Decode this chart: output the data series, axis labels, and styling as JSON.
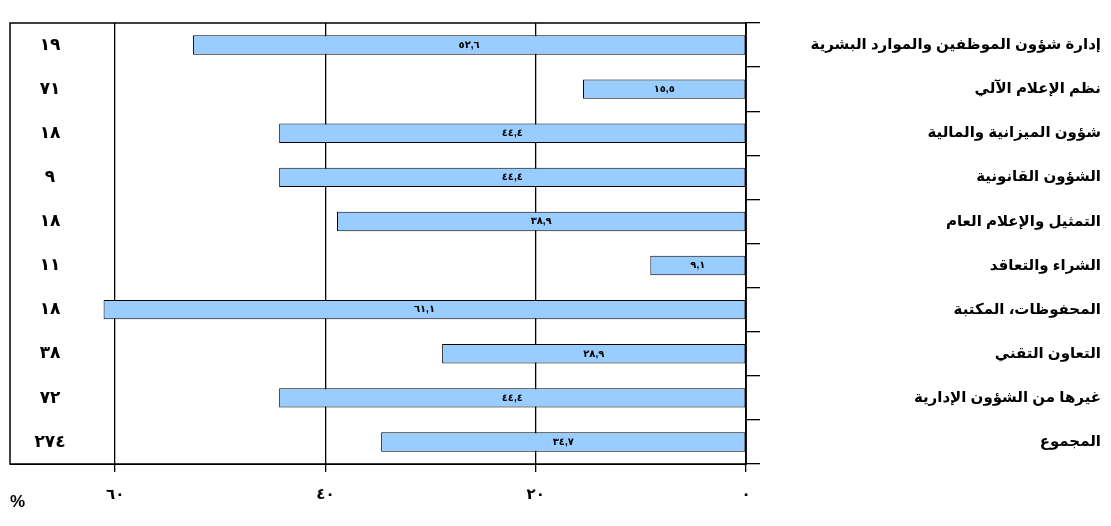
{
  "chart_data": {
    "type": "bar",
    "orientation": "horizontal",
    "xlabel": "%",
    "categories": [
      "إدارة شؤون الموظفين والموارد البشرية",
      "نظم الإعلام الآلي",
      "شؤون الميزانية والمالية",
      "الشؤون القانونية",
      "التمثيل والإعلام العام",
      "الشراء والتعاقد",
      "المحفوظات، المكتبة",
      "التعاون التقني",
      "غيرها من الشؤون الإدارية",
      "المجموع"
    ],
    "values": [
      52.6,
      15.5,
      44.4,
      44.4,
      38.9,
      9.1,
      61.1,
      28.9,
      44.4,
      34.7
    ],
    "value_labels": [
      "٥٢,٦",
      "١٥,٥",
      "٤٤,٤",
      "٤٤,٤",
      "٣٨,٩",
      "٩,١",
      "٦١,١",
      "٢٨,٩",
      "٤٤,٤",
      "٣٤,٧"
    ],
    "color": "#99ccff",
    "xlim": [
      70,
      0
    ],
    "xticks": [
      {
        "value": 60,
        "label": "٦٠"
      },
      {
        "value": 40,
        "label": "٤٠"
      },
      {
        "value": 20,
        "label": "٢٠"
      },
      {
        "value": 0,
        "label": "٠"
      }
    ],
    "grid": "x",
    "annotations": [
      "١٩",
      "٧١",
      "١٨",
      "٩",
      "١٨",
      "١١",
      "١٨",
      "٣٨",
      "٧٢",
      "٢٧٤"
    ]
  }
}
